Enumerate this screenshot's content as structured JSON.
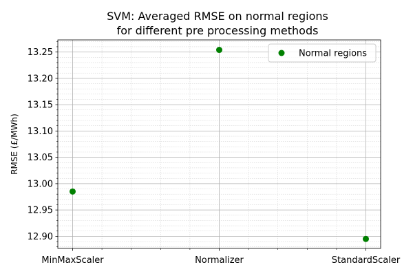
{
  "chart_data": {
    "type": "scatter",
    "title_lines": [
      "SVM: Averaged RMSE on normal regions",
      "for different pre processing methods"
    ],
    "xlabel": "",
    "ylabel": "RMSE (£/MWh)",
    "categories": [
      "MinMaxScaler",
      "Normalizer",
      "StandardScaler"
    ],
    "series": [
      {
        "name": "Normal regions",
        "color": "#008000",
        "values": [
          12.985,
          13.254,
          12.895
        ]
      }
    ],
    "ylim": [
      12.877,
      13.273
    ],
    "yticks": [
      12.9,
      12.95,
      13.0,
      13.05,
      13.1,
      13.15,
      13.2,
      13.25
    ],
    "ytick_labels": [
      "12.90",
      "12.95",
      "13.00",
      "13.05",
      "13.10",
      "13.15",
      "13.20",
      "13.25"
    ],
    "minor_yticks_per_major": 4,
    "minor_xticks_per_interval": 4,
    "grid": {
      "major": true,
      "minor": true
    },
    "legend": {
      "position": "upper right"
    }
  }
}
